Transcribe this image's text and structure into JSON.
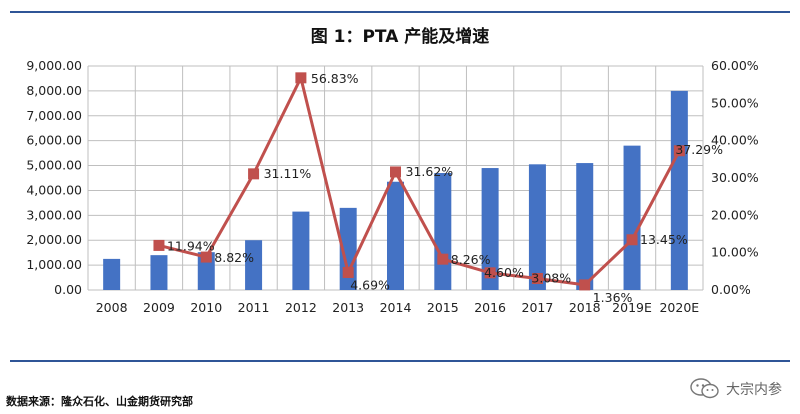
{
  "figure": {
    "title": "图 1：PTA 产能及增速",
    "source": "数据来源：隆众石化、山金期货研究部",
    "watermark": "大宗内参"
  },
  "colors": {
    "bar": "#4472c4",
    "line": "#c0504d",
    "rule": "#2f5597",
    "grid": "#bfbfbf"
  },
  "chart_data": {
    "type": "bar",
    "title": "图 1：PTA 产能及增速",
    "categories": [
      "2008",
      "2009",
      "2010",
      "2011",
      "2012",
      "2013",
      "2014",
      "2015",
      "2016",
      "2017",
      "2018",
      "2019E",
      "2020E"
    ],
    "series": [
      {
        "type": "bar",
        "axis": "left",
        "values": [
          1250,
          1400,
          1520,
          2000,
          3150,
          3300,
          4350,
          4700,
          4900,
          5050,
          5100,
          5800,
          8000
        ]
      },
      {
        "type": "line",
        "axis": "right",
        "values": [
          null,
          11.94,
          8.82,
          31.11,
          56.83,
          4.69,
          31.62,
          8.26,
          4.6,
          3.08,
          1.36,
          13.45,
          37.29
        ],
        "labels": [
          "",
          "11.94%",
          "8.82%",
          "31.11%",
          "56.83%",
          "4.69%",
          "31.62%",
          "8.26%",
          "4.60%",
          "3.08%",
          "1.36%",
          "13.45%",
          "37.29%"
        ]
      }
    ],
    "y_left": {
      "min": 0,
      "max": 9000,
      "step": 1000,
      "ticks": [
        "0.00",
        "1,000.00",
        "2,000.00",
        "3,000.00",
        "4,000.00",
        "5,000.00",
        "6,000.00",
        "7,000.00",
        "8,000.00",
        "9,000.00"
      ]
    },
    "y_right": {
      "min": 0,
      "max": 60,
      "step": 10,
      "ticks": [
        "0.00%",
        "10.00%",
        "20.00%",
        "30.00%",
        "40.00%",
        "50.00%",
        "60.00%"
      ]
    },
    "grid": true,
    "legend": "none"
  }
}
